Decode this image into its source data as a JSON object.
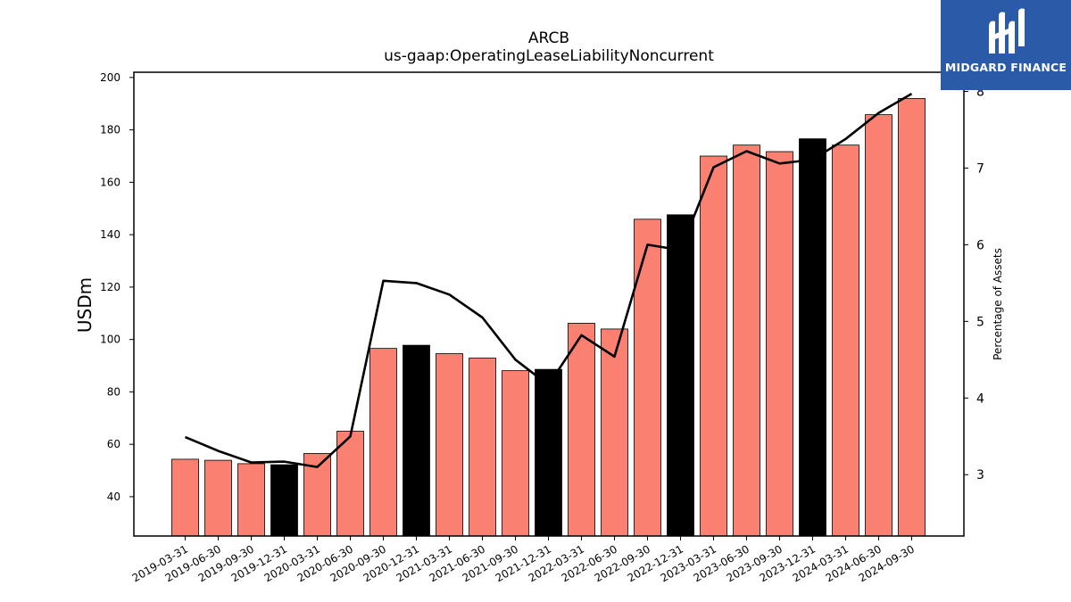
{
  "logo": {
    "text": "MIDGARD FINANCE",
    "icon": "midgard-m-icon",
    "bg_color": "#2a5aa8"
  },
  "chart_data": {
    "type": "bar",
    "title": "ARCB",
    "subtitle": "us-gaap:OperatingLeaseLiabilityNoncurrent",
    "ylabel": "USDm",
    "y2label": "Percentage of Assets",
    "ylim": [
      25,
      202
    ],
    "y2lim": [
      2.2,
      8.25
    ],
    "yticks": [
      40,
      60,
      80,
      100,
      120,
      140,
      160,
      180,
      200
    ],
    "y2ticks": [
      3,
      4,
      5,
      6,
      7,
      8
    ],
    "categories": [
      "2019-03-31",
      "2019-06-30",
      "2019-09-30",
      "2019-12-31",
      "2020-03-31",
      "2020-06-30",
      "2020-09-30",
      "2020-12-31",
      "2021-03-31",
      "2021-06-30",
      "2021-09-30",
      "2021-12-31",
      "2022-03-31",
      "2022-06-30",
      "2022-09-30",
      "2022-12-31",
      "2023-03-31",
      "2023-06-30",
      "2023-09-30",
      "2023-12-31",
      "2024-03-31",
      "2024-06-30",
      "2024-09-30"
    ],
    "values": [
      54.3,
      53.9,
      52.6,
      52.2,
      56.5,
      65.0,
      96.6,
      97.8,
      94.6,
      92.9,
      88.1,
      88.6,
      106.2,
      104.0,
      145.9,
      147.6,
      170.0,
      174.2,
      171.7,
      176.6,
      174.2,
      185.8,
      192.0
    ],
    "highlight": [
      false,
      false,
      false,
      true,
      false,
      false,
      false,
      true,
      false,
      false,
      false,
      true,
      false,
      false,
      false,
      true,
      false,
      false,
      false,
      true,
      false,
      false,
      false
    ],
    "line_values": [
      3.49,
      3.31,
      3.16,
      3.17,
      3.1,
      3.5,
      5.53,
      5.5,
      5.35,
      5.05,
      4.5,
      4.17,
      4.82,
      4.54,
      6.0,
      5.93,
      7.01,
      7.22,
      7.06,
      7.11,
      7.38,
      7.72,
      7.97
    ],
    "colors": {
      "bar": "#fa8072",
      "bar_highlight": "#000000",
      "line": "#000000",
      "edge": "#000000"
    }
  }
}
